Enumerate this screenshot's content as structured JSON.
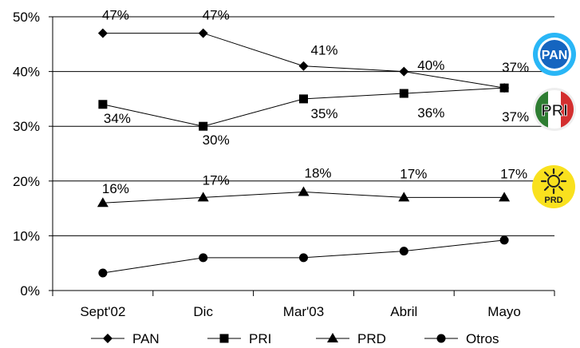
{
  "chart_data": {
    "type": "line",
    "title": "",
    "xlabel": "",
    "ylabel": "",
    "categories": [
      "Sept'02",
      "Dic",
      "Mar'03",
      "Abril",
      "Mayo"
    ],
    "ylim": [
      0,
      50
    ],
    "y_ticks": [
      "0%",
      "10%",
      "20%",
      "30%",
      "40%",
      "50%"
    ],
    "grid": "horizontal",
    "legend_position": "bottom",
    "series": [
      {
        "name": "PAN",
        "marker": "diamond",
        "values": [
          47,
          47,
          41,
          40,
          37
        ],
        "labels": [
          "47%",
          "47%",
          "41%",
          "40%",
          "37%"
        ]
      },
      {
        "name": "PRI",
        "marker": "square",
        "values": [
          34,
          30,
          35,
          36,
          37
        ],
        "labels": [
          "34%",
          "30%",
          "35%",
          "36%",
          "37%"
        ]
      },
      {
        "name": "PRD",
        "marker": "triangle",
        "values": [
          16,
          17,
          18,
          17,
          17
        ],
        "labels": [
          "16%",
          "17%",
          "18%",
          "17%",
          "17%"
        ]
      },
      {
        "name": "Otros",
        "marker": "circle",
        "values": [
          3.2,
          6,
          6,
          7.2,
          9.2
        ],
        "labels": []
      }
    ]
  },
  "logos": {
    "pan": {
      "text": "PAN",
      "color": "#1565c0",
      "ring": "#29b6f6"
    },
    "pri": {
      "text": "PRI",
      "colors": [
        "#2e7d32",
        "#ffffff",
        "#d32f2f"
      ]
    },
    "prd": {
      "text": "PRD",
      "color": "#f9e11e"
    }
  }
}
